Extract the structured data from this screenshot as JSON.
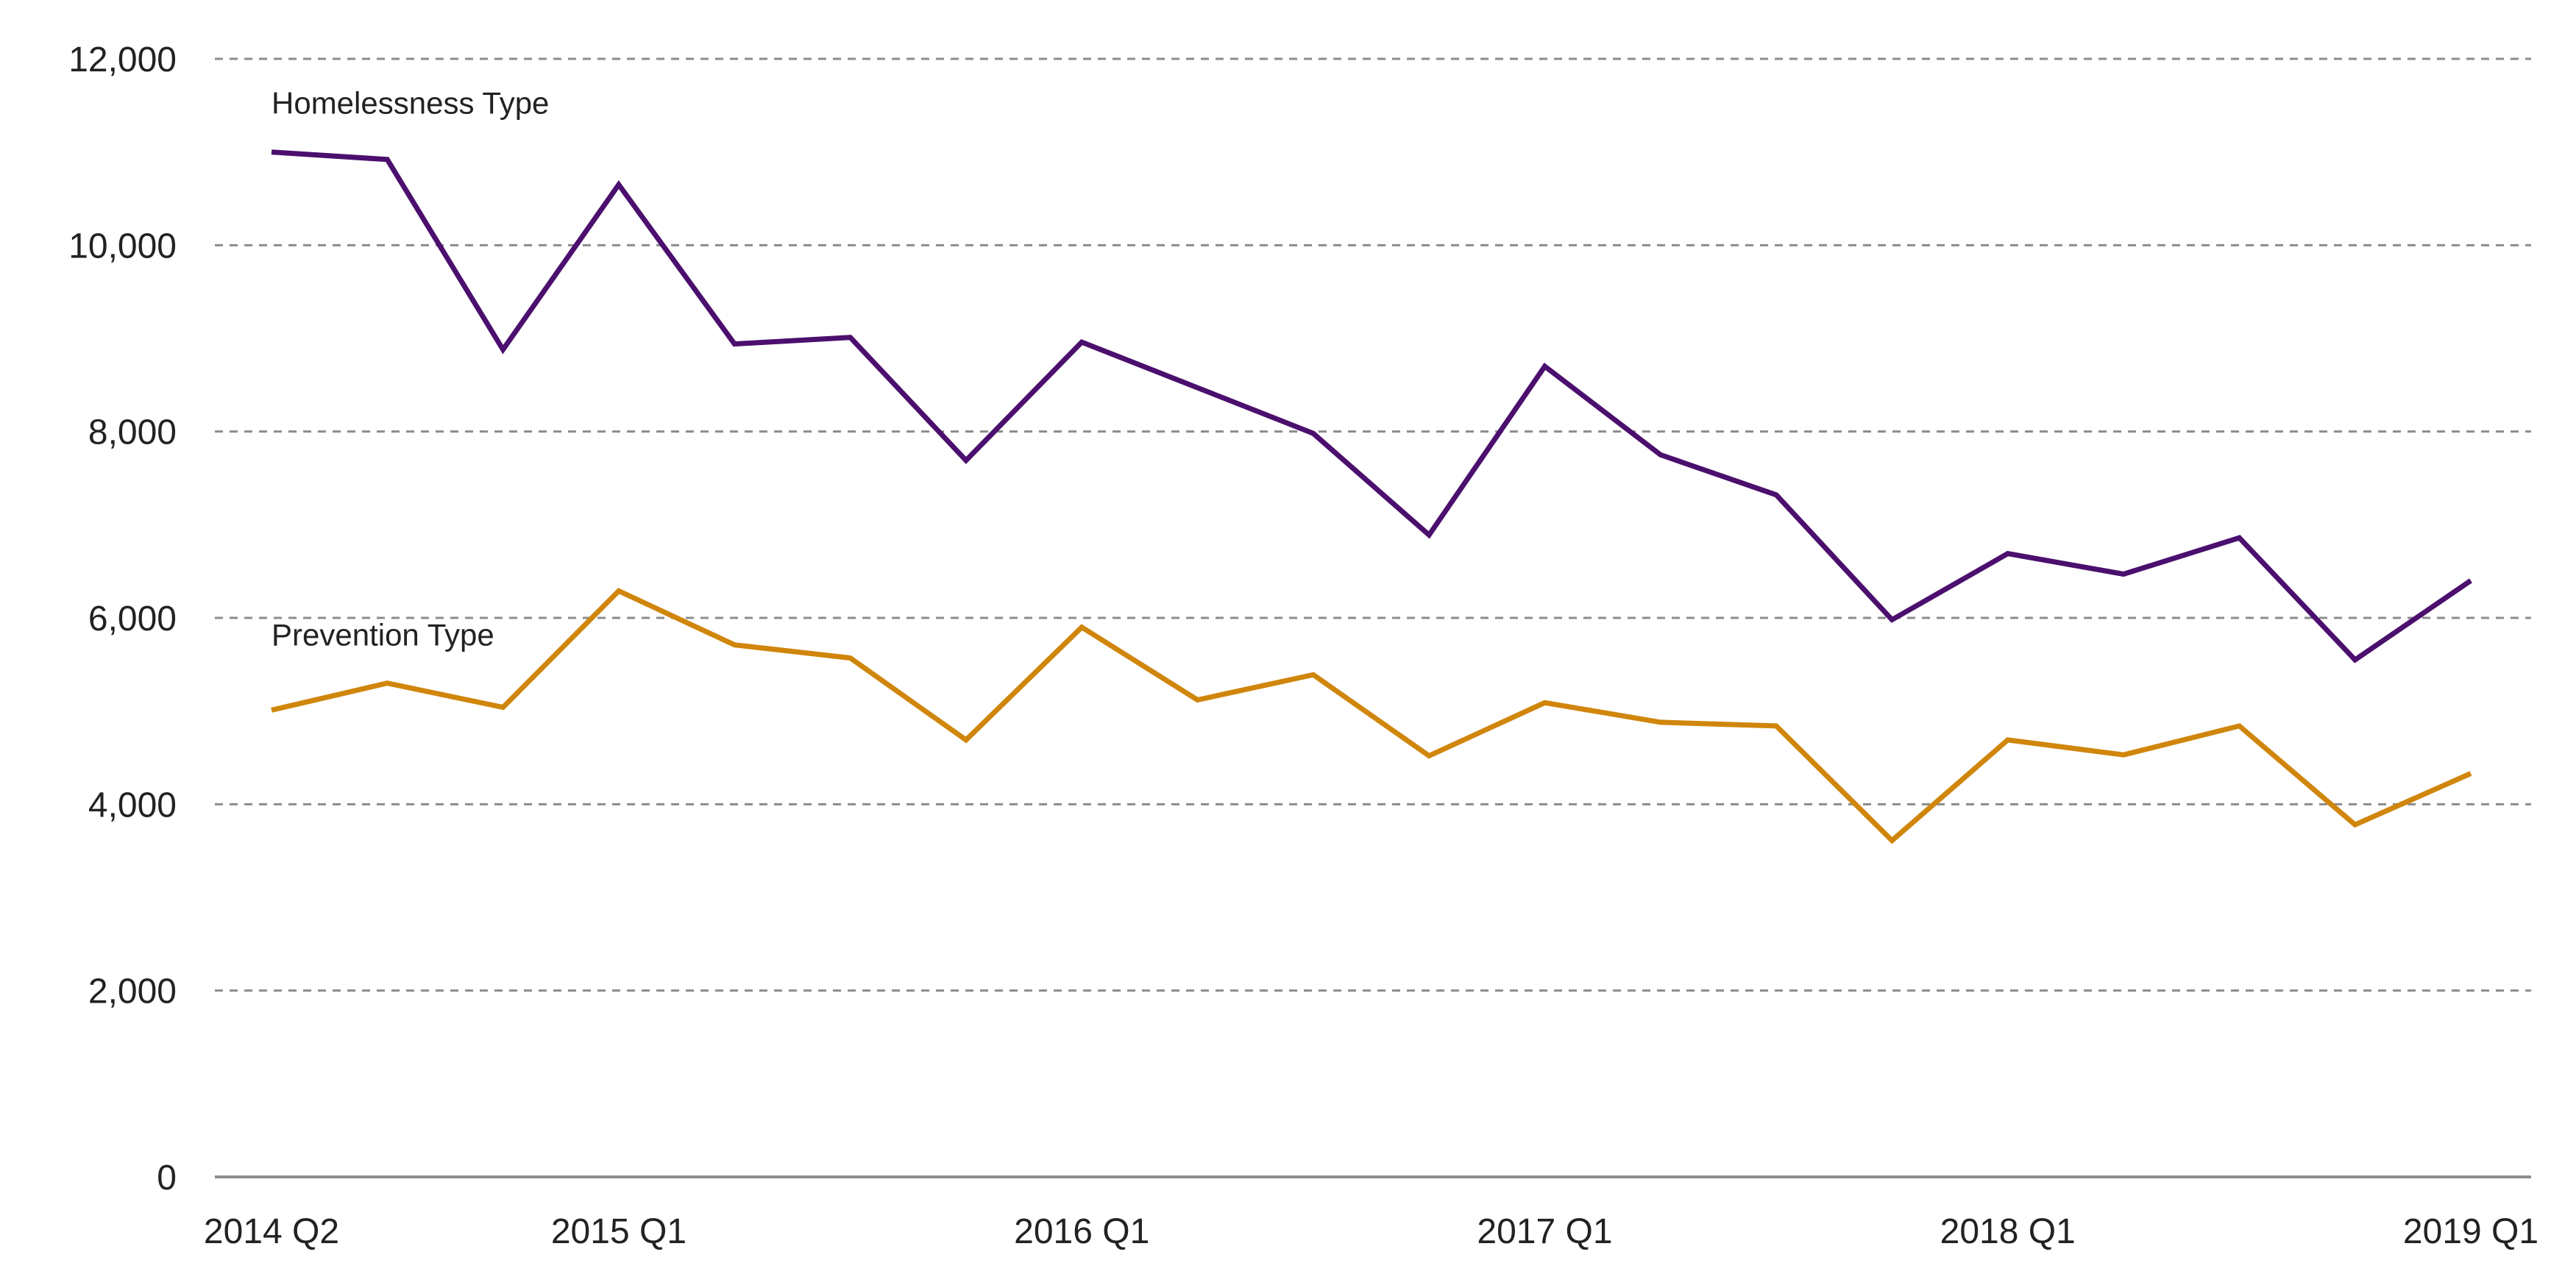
{
  "chart_data": {
    "type": "line",
    "title": "",
    "xlabel": "",
    "ylabel": "",
    "ylim": [
      0,
      12000
    ],
    "yticks": [
      0,
      2000,
      4000,
      6000,
      8000,
      10000,
      12000
    ],
    "ytick_labels": [
      "0",
      "2,000",
      "4,000",
      "6,000",
      "8,000",
      "10,000",
      "12,000"
    ],
    "grid": true,
    "legend": "none",
    "x": [
      "2014 Q2",
      "2014 Q3",
      "2014 Q4",
      "2015 Q1",
      "2015 Q2",
      "2015 Q3",
      "2015 Q4",
      "2016 Q1",
      "2016 Q2",
      "2016 Q3",
      "2016 Q4",
      "2017 Q1",
      "2017 Q2",
      "2017 Q3",
      "2017 Q4",
      "2018 Q1",
      "2018 Q2",
      "2018 Q3",
      "2018 Q4",
      "2019 Q1"
    ],
    "x_tick_labels": [
      {
        "index": 0,
        "label": "2014 Q2"
      },
      {
        "index": 3,
        "label": "2015 Q1"
      },
      {
        "index": 7,
        "label": "2016 Q1"
      },
      {
        "index": 11,
        "label": "2017 Q1"
      },
      {
        "index": 15,
        "label": "2018 Q1"
      },
      {
        "index": 19,
        "label": "2019 Q1"
      }
    ],
    "series": [
      {
        "name": "Homelessness Type",
        "color": "#4b0f6e",
        "values": [
          11000,
          10920,
          8880,
          10650,
          8940,
          9010,
          7690,
          8960,
          8470,
          7980,
          6890,
          8700,
          7750,
          7320,
          5980,
          6690,
          6470,
          6860,
          5550,
          6400
        ]
      },
      {
        "name": "Prevention Type",
        "color": "#d0860b",
        "values": [
          5010,
          5300,
          5040,
          6290,
          5710,
          5570,
          4690,
          5900,
          5120,
          5390,
          4520,
          5090,
          4880,
          4840,
          3610,
          4690,
          4530,
          4840,
          3780,
          4330
        ]
      }
    ]
  }
}
